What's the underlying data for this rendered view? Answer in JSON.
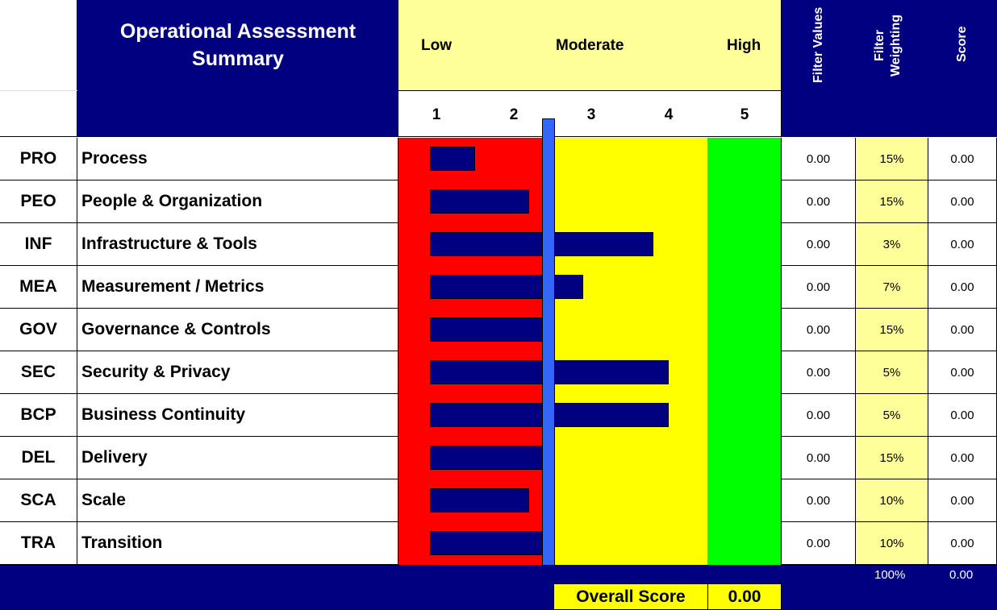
{
  "header": {
    "title_line1": "Operational Assessment",
    "title_line2": "Summary",
    "scale_labels": {
      "low": "Low",
      "moderate": "Moderate",
      "high": "High"
    },
    "ticks": [
      "1",
      "2",
      "3",
      "4",
      "5"
    ],
    "col_filter_values": "Filter Values",
    "col_filter_weighting_1": "Filter",
    "col_filter_weighting_2": "Weighting",
    "col_score": "Score"
  },
  "rows": [
    {
      "code": "PRO",
      "name": "Process",
      "filter_value": "0.00",
      "weighting": "15%",
      "score": "0.00"
    },
    {
      "code": "PEO",
      "name": "People & Organization",
      "filter_value": "0.00",
      "weighting": "15%",
      "score": "0.00"
    },
    {
      "code": "INF",
      "name": "Infrastructure & Tools",
      "filter_value": "0.00",
      "weighting": "3%",
      "score": "0.00"
    },
    {
      "code": "MEA",
      "name": "Measurement / Metrics",
      "filter_value": "0.00",
      "weighting": "7%",
      "score": "0.00"
    },
    {
      "code": "GOV",
      "name": "Governance & Controls",
      "filter_value": "0.00",
      "weighting": "15%",
      "score": "0.00"
    },
    {
      "code": "SEC",
      "name": "Security & Privacy",
      "filter_value": "0.00",
      "weighting": "5%",
      "score": "0.00"
    },
    {
      "code": "BCP",
      "name": "Business Continuity",
      "filter_value": "0.00",
      "weighting": "5%",
      "score": "0.00"
    },
    {
      "code": "DEL",
      "name": "Delivery",
      "filter_value": "0.00",
      "weighting": "15%",
      "score": "0.00"
    },
    {
      "code": "SCA",
      "name": "Scale",
      "filter_value": "0.00",
      "weighting": "10%",
      "score": "0.00"
    },
    {
      "code": "TRA",
      "name": "Transition",
      "filter_value": "0.00",
      "weighting": "10%",
      "score": "0.00"
    }
  ],
  "footer": {
    "total_weighting": "100%",
    "total_score": "0.00",
    "overall_label": "Overall Score",
    "overall_value": "0.00"
  },
  "colors": {
    "navy": "#000080",
    "low_zone": "#ff0000",
    "moderate_zone": "#ffff00",
    "high_zone": "#00ff00",
    "marker": "#3366ff",
    "header_yellow": "#ffff99"
  },
  "chart_data": {
    "type": "bar",
    "orientation": "horizontal",
    "title": "Operational Assessment Summary",
    "categories": [
      "Process",
      "People & Organization",
      "Infrastructure & Tools",
      "Measurement / Metrics",
      "Governance & Controls",
      "Security & Privacy",
      "Business Continuity",
      "Delivery",
      "Scale",
      "Transition"
    ],
    "values": [
      1.5,
      2.2,
      3.8,
      2.9,
      2.4,
      4.0,
      4.0,
      2.4,
      2.2,
      2.4
    ],
    "xlabel": "",
    "ylabel": "",
    "xlim": [
      0.6,
      5.5
    ],
    "x_ticks": [
      1,
      2,
      3,
      4,
      5
    ],
    "zones": [
      {
        "name": "Low",
        "from": 0.6,
        "to": 2.4,
        "color": "#ff0000"
      },
      {
        "name": "Moderate",
        "from": 2.5,
        "to": 4.5,
        "color": "#ffff00"
      },
      {
        "name": "High",
        "from": 4.5,
        "to": 5.5,
        "color": "#00ff00"
      }
    ],
    "marker_line": {
      "value": 2.45,
      "color": "#3366ff"
    },
    "grid": false,
    "legend": "none"
  }
}
